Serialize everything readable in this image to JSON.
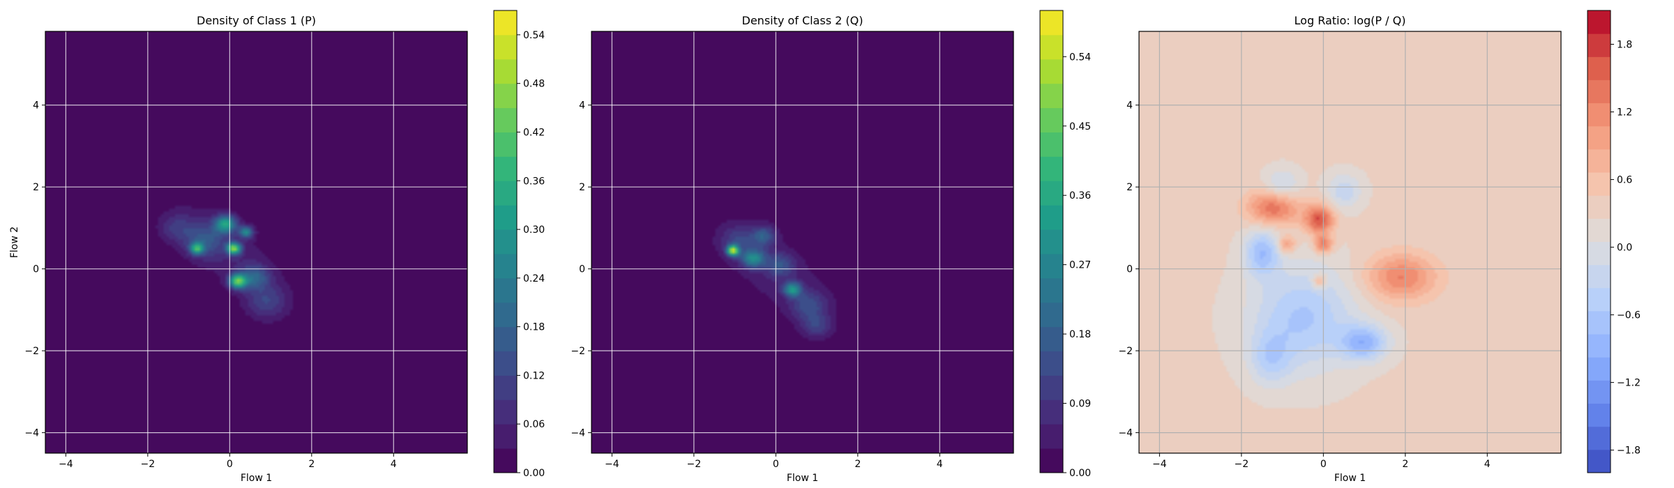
{
  "chart_data": [
    {
      "type": "heatmap",
      "title": "Density of Class 1 (P)",
      "xlabel": "Flow 1",
      "ylabel": "Flow 2",
      "xlim": [
        -4.5,
        5.8
      ],
      "ylim": [
        -4.5,
        5.8
      ],
      "xticks": [
        -4,
        -2,
        0,
        2,
        4
      ],
      "yticks": [
        -4,
        -2,
        0,
        2,
        4
      ],
      "grid": true,
      "colormap": "viridis",
      "colorbar": {
        "min": 0.0,
        "max": 0.57,
        "ticks": [
          0.0,
          0.06,
          0.12,
          0.18,
          0.24,
          0.3,
          0.36,
          0.42,
          0.48,
          0.54
        ]
      },
      "background_level": 0.0,
      "blobs": [
        {
          "x": 0.0,
          "y": 0.4,
          "sx": 1.25,
          "sy": 0.55,
          "rot": -0.7,
          "value": 0.05
        },
        {
          "x": -0.6,
          "y": 0.7,
          "sx": 0.35,
          "sy": 0.3,
          "rot": 0,
          "value": 0.12
        },
        {
          "x": -0.1,
          "y": 1.1,
          "sx": 0.18,
          "sy": 0.15,
          "rot": 0,
          "value": 0.3
        },
        {
          "x": 0.1,
          "y": 0.5,
          "sx": 0.12,
          "sy": 0.1,
          "rot": 0,
          "value": 0.42
        },
        {
          "x": 0.2,
          "y": -0.3,
          "sx": 0.15,
          "sy": 0.12,
          "rot": 0,
          "value": 0.4
        },
        {
          "x": -0.8,
          "y": 0.5,
          "sx": 0.12,
          "sy": 0.1,
          "rot": 0,
          "value": 0.3
        },
        {
          "x": 0.6,
          "y": -0.2,
          "sx": 0.25,
          "sy": 0.2,
          "rot": 0,
          "value": 0.15
        },
        {
          "x": 0.9,
          "y": -0.8,
          "sx": 0.35,
          "sy": 0.3,
          "rot": 0,
          "value": 0.1
        },
        {
          "x": -1.3,
          "y": 1.0,
          "sx": 0.3,
          "sy": 0.25,
          "rot": 0,
          "value": 0.08
        },
        {
          "x": 0.4,
          "y": 0.9,
          "sx": 0.12,
          "sy": 0.1,
          "rot": 0,
          "value": 0.25
        }
      ]
    },
    {
      "type": "heatmap",
      "title": "Density of Class 2 (Q)",
      "xlabel": "Flow 1",
      "ylabel": "",
      "xlim": [
        -4.5,
        5.8
      ],
      "ylim": [
        -4.5,
        5.8
      ],
      "xticks": [
        -4,
        -2,
        0,
        2,
        4
      ],
      "yticks": [
        -4,
        -2,
        0,
        2,
        4
      ],
      "grid": true,
      "colormap": "viridis",
      "colorbar": {
        "min": 0.0,
        "max": 0.6,
        "ticks": [
          0.0,
          0.09,
          0.18,
          0.27,
          0.36,
          0.45,
          0.54
        ]
      },
      "background_level": 0.0,
      "blobs": [
        {
          "x": 0.0,
          "y": -0.1,
          "sx": 1.35,
          "sy": 0.6,
          "rot": -0.65,
          "value": 0.05
        },
        {
          "x": -1.05,
          "y": 0.45,
          "sx": 0.1,
          "sy": 0.09,
          "rot": 0,
          "value": 0.5
        },
        {
          "x": -0.55,
          "y": 0.25,
          "sx": 0.2,
          "sy": 0.15,
          "rot": 0,
          "value": 0.25
        },
        {
          "x": -0.3,
          "y": 0.8,
          "sx": 0.2,
          "sy": 0.18,
          "rot": 0,
          "value": 0.15
        },
        {
          "x": 0.4,
          "y": -0.5,
          "sx": 0.15,
          "sy": 0.12,
          "rot": 0,
          "value": 0.28
        },
        {
          "x": 0.8,
          "y": -0.9,
          "sx": 0.3,
          "sy": 0.25,
          "rot": 0,
          "value": 0.12
        },
        {
          "x": -0.9,
          "y": 0.7,
          "sx": 0.3,
          "sy": 0.25,
          "rot": 0,
          "value": 0.1
        },
        {
          "x": 0.1,
          "y": 0.1,
          "sx": 0.25,
          "sy": 0.2,
          "rot": 0,
          "value": 0.12
        },
        {
          "x": 1.0,
          "y": -1.4,
          "sx": 0.25,
          "sy": 0.2,
          "rot": 0,
          "value": 0.1
        }
      ]
    },
    {
      "type": "heatmap",
      "title": "Log Ratio: log(P / Q)",
      "xlabel": "Flow 1",
      "ylabel": "",
      "xlim": [
        -4.5,
        5.8
      ],
      "ylim": [
        -4.5,
        5.8
      ],
      "xticks": [
        -4,
        -2,
        0,
        2,
        4
      ],
      "yticks": [
        -4,
        -2,
        0,
        2,
        4
      ],
      "grid": true,
      "colormap": "coolwarm",
      "colorbar": {
        "min": -2.0,
        "max": 2.1,
        "ticks": [
          -1.8,
          -1.2,
          -0.6,
          0.0,
          0.6,
          1.2,
          1.8
        ]
      },
      "background_level": 0.3,
      "blobs": [
        {
          "x": -1.2,
          "y": 1.5,
          "sx": 0.45,
          "sy": 0.3,
          "rot": 0,
          "value": 1.2
        },
        {
          "x": -0.1,
          "y": 1.2,
          "sx": 0.25,
          "sy": 0.25,
          "rot": 0,
          "value": 1.4
        },
        {
          "x": -0.9,
          "y": 0.6,
          "sx": 0.15,
          "sy": 0.15,
          "rot": 0,
          "value": 0.8
        },
        {
          "x": 0.0,
          "y": 0.6,
          "sx": 0.15,
          "sy": 0.15,
          "rot": 0,
          "value": 1.1
        },
        {
          "x": 1.9,
          "y": -0.2,
          "sx": 0.6,
          "sy": 0.4,
          "rot": 0,
          "value": 1.0
        },
        {
          "x": -1.5,
          "y": 0.4,
          "sx": 0.3,
          "sy": 0.4,
          "rot": 0,
          "value": -1.0
        },
        {
          "x": -0.5,
          "y": -1.2,
          "sx": 0.9,
          "sy": 0.9,
          "rot": 0,
          "value": -0.9
        },
        {
          "x": 1.0,
          "y": -1.8,
          "sx": 0.4,
          "sy": 0.3,
          "rot": 0,
          "value": -1.1
        },
        {
          "x": -1.0,
          "y": 2.0,
          "sx": 0.3,
          "sy": 0.3,
          "rot": 0,
          "value": -0.6
        },
        {
          "x": 0.5,
          "y": 1.9,
          "sx": 0.3,
          "sy": 0.3,
          "rot": 0,
          "value": -0.6
        },
        {
          "x": -1.3,
          "y": -2.2,
          "sx": 0.35,
          "sy": 0.45,
          "rot": 0,
          "value": -0.6
        },
        {
          "x": -0.1,
          "y": -0.3,
          "sx": 0.12,
          "sy": 0.12,
          "rot": 0,
          "value": 0.8
        }
      ]
    }
  ]
}
